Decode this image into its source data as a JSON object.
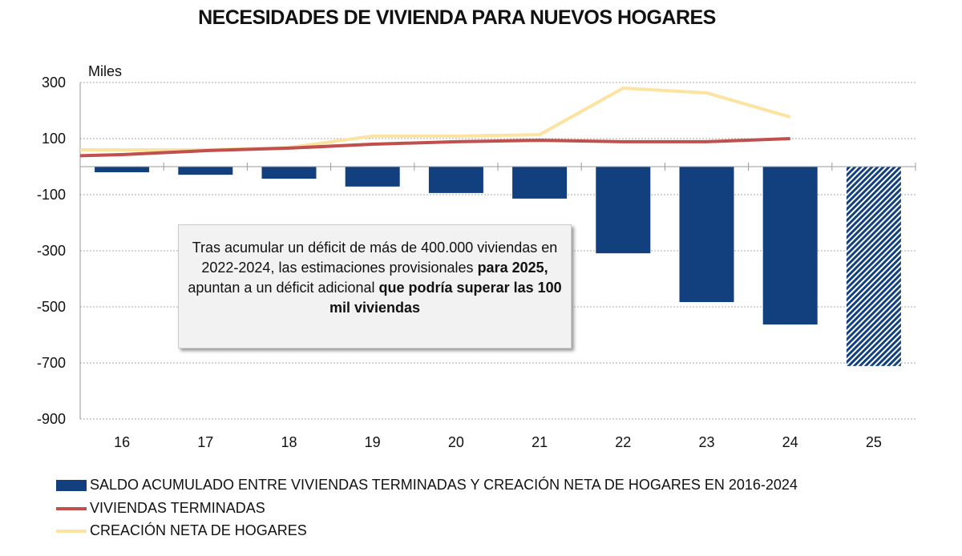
{
  "title": "NECESIDADES DE VIVIENDA PARA NUEVOS HOGARES",
  "note": {
    "p1": "Tras acumular un déficit de más de 400.000 viviendas en 2022-2024, las estimaciones provisionales ",
    "b1": "para 2025,",
    "p2": " apuntan a un déficit adicional ",
    "b2": "que podría superar las 100 mil viviendas"
  },
  "chart_data": {
    "type": "bar",
    "title": "NECESIDADES DE VIVIENDA PARA NUEVOS HOGARES",
    "ylabel": "Miles",
    "ylim": [
      -900,
      300
    ],
    "yticks": [
      300,
      100,
      -100,
      -300,
      -500,
      -700,
      -900
    ],
    "categories": [
      "16",
      "17",
      "18",
      "19",
      "20",
      "21",
      "22",
      "23",
      "24",
      "25"
    ],
    "grid": true,
    "legend_placement": "bottom",
    "series": [
      {
        "name": "SALDO ACUMULADO ENTRE VIVIENDAS TERMINADAS Y CREACIÓN NETA DE HOGARES EN 2016-2024",
        "type": "bar",
        "color": "#123f7e",
        "values": [
          -20,
          -29,
          -43,
          -71,
          -94,
          -114,
          -309,
          -483,
          -563,
          -711
        ],
        "hatched_last": true
      },
      {
        "name": "VIVIENDAS TERMINADAS",
        "type": "line",
        "color": "#c0504d",
        "values": [
          43,
          57,
          66,
          80,
          89,
          94,
          89,
          89,
          100,
          null
        ]
      },
      {
        "name": "CREACIÓN NETA DE HOGARES",
        "type": "line",
        "color": "#fde3a0",
        "values": [
          60,
          60,
          68,
          109,
          109,
          114,
          280,
          263,
          177,
          null
        ]
      }
    ]
  }
}
